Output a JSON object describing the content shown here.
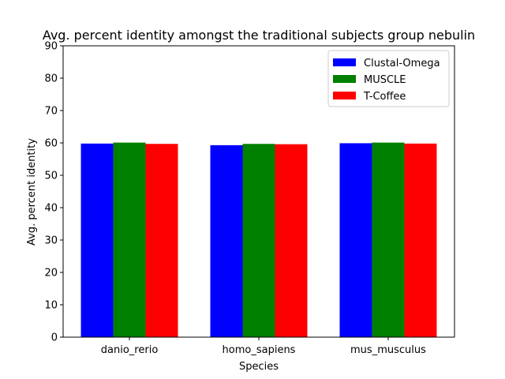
{
  "chart_data": {
    "type": "bar",
    "title": "Avg. percent identity amongst the traditional subjects group nebulin",
    "xlabel": "Species",
    "ylabel": "Avg. percent identity",
    "categories": [
      "danio_rerio",
      "homo_sapiens",
      "mus_musculus"
    ],
    "ylim": [
      0,
      90
    ],
    "yticks": [
      0,
      10,
      20,
      30,
      40,
      50,
      60,
      70,
      80,
      90
    ],
    "grid": false,
    "legend_position": "top-right",
    "series": [
      {
        "name": "Clustal-Omega",
        "color": "#0000ff",
        "values": [
          59.8,
          59.3,
          59.9
        ]
      },
      {
        "name": "MUSCLE",
        "color": "#008000",
        "values": [
          60.1,
          59.7,
          60.1
        ]
      },
      {
        "name": "T-Coffee",
        "color": "#ff0000",
        "values": [
          59.7,
          59.6,
          59.8
        ]
      }
    ]
  }
}
